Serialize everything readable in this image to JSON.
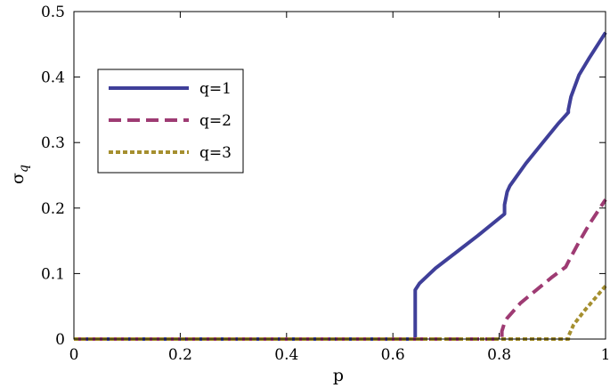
{
  "chart_data": {
    "type": "line",
    "title": "",
    "xlabel": "p",
    "ylabel": "σ",
    "ylabel_subscript": "q",
    "xlim": [
      0,
      1
    ],
    "ylim": [
      0,
      0.5
    ],
    "xticks": [
      0,
      0.2,
      0.4,
      0.6,
      0.8,
      1
    ],
    "xtick_labels": [
      "0",
      "0.2",
      "0.4",
      "0.6",
      "0.8",
      "1"
    ],
    "yticks": [
      0,
      0.1,
      0.2,
      0.3,
      0.4,
      0.5
    ],
    "ytick_labels": [
      "0",
      "0.1",
      "0.2",
      "0.3",
      "0.4",
      "0.5"
    ],
    "grid": false,
    "legend_position": "upper-left",
    "series": [
      {
        "name": "q=1",
        "color": "#3f3f99",
        "style": "solid",
        "x": [
          0,
          0.642,
          0.642,
          0.65,
          0.68,
          0.72,
          0.76,
          0.81,
          0.81,
          0.815,
          0.82,
          0.85,
          0.88,
          0.91,
          0.93,
          0.93,
          0.935,
          0.95,
          0.97,
          1.0
        ],
        "y": [
          0,
          0,
          0.075,
          0.085,
          0.108,
          0.133,
          0.158,
          0.191,
          0.205,
          0.225,
          0.234,
          0.268,
          0.298,
          0.328,
          0.346,
          0.35,
          0.37,
          0.403,
          0.43,
          0.468
        ]
      },
      {
        "name": "q=2",
        "color": "#9e3b73",
        "style": "dashed",
        "x": [
          0,
          0.805,
          0.805,
          0.81,
          0.815,
          0.84,
          0.87,
          0.9,
          0.925,
          0.93,
          0.95,
          0.97,
          1.0
        ],
        "y": [
          0,
          0,
          0.012,
          0.025,
          0.032,
          0.055,
          0.075,
          0.095,
          0.11,
          0.118,
          0.148,
          0.176,
          0.213
        ]
      },
      {
        "name": "q=3",
        "color": "#a58f2f",
        "style": "dotted",
        "x": [
          0,
          0.93,
          0.93,
          0.94,
          0.96,
          0.98,
          1.0
        ],
        "y": [
          0,
          0,
          0.004,
          0.022,
          0.043,
          0.062,
          0.081
        ]
      }
    ]
  }
}
